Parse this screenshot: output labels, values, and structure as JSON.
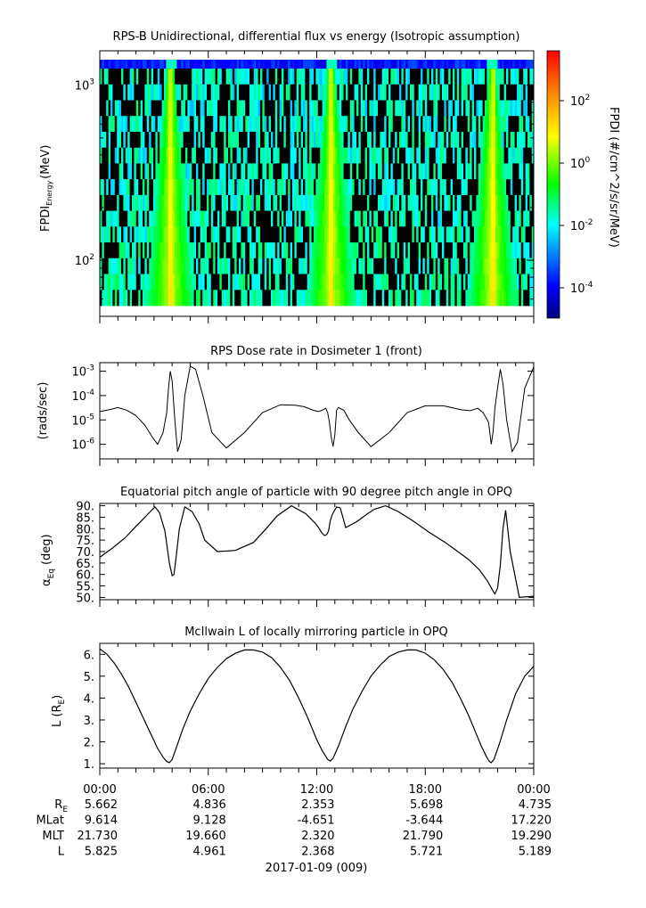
{
  "figure": {
    "date_label": "2017-01-09 (009)",
    "x_ticks": [
      "00:00",
      "06:00",
      "12:00",
      "18:00",
      "00:00"
    ],
    "ephemeris": [
      {
        "label": "R",
        "sub": "E",
        "values": [
          "5.662",
          "4.836",
          "2.353",
          "5.698",
          "4.735"
        ]
      },
      {
        "label": "MLat",
        "sub": "",
        "values": [
          "9.614",
          "9.128",
          "-4.651",
          "-3.644",
          "17.220"
        ]
      },
      {
        "label": "MLT",
        "sub": "",
        "values": [
          "21.730",
          "19.660",
          "2.320",
          "21.790",
          "19.290"
        ]
      },
      {
        "label": "L",
        "sub": "",
        "values": [
          "5.825",
          "4.961",
          "2.368",
          "5.721",
          "5.189"
        ]
      }
    ]
  },
  "chart_data": [
    {
      "type": "heatmap",
      "title": "RPS-B  Unidirectional, differential flux vs energy (Isotropic assumption)",
      "ylabel": "FPDI",
      "ylabel_sub": "Energy",
      "ylabel_unit": "(MeV)",
      "y_scale": "log",
      "y_ticks": [
        {
          "base": "10",
          "exp": "2",
          "value": 100
        },
        {
          "base": "10",
          "exp": "3",
          "value": 1000
        }
      ],
      "x_range_hours": [
        0,
        24
      ],
      "enhancement_centers_hours": [
        3.85,
        12.75,
        21.65
      ],
      "colorbar": {
        "label": "FPDI (#/cm^2/s/sr/MeV)",
        "scale": "log",
        "ticks": [
          {
            "base": "10",
            "exp": "2"
          },
          {
            "base": "10",
            "exp": "0"
          },
          {
            "base": "10",
            "exp": "-2"
          },
          {
            "base": "10",
            "exp": "-4"
          }
        ],
        "colors": [
          "#000080",
          "#0000ff",
          "#00ffff",
          "#00ff00",
          "#ffff00",
          "#ff8000",
          "#ff0000"
        ]
      }
    },
    {
      "type": "line",
      "title": "RPS  Dose rate in Dosimeter 1 (front)",
      "ylabel": "(rads/sec)",
      "y_scale": "log",
      "y_ticks": [
        {
          "base": "10",
          "exp": "-3"
        },
        {
          "base": "10",
          "exp": "-4"
        },
        {
          "base": "10",
          "exp": "-5"
        },
        {
          "base": "10",
          "exp": "-6"
        }
      ],
      "x": [
        0,
        0.5,
        1.0,
        1.5,
        2.0,
        2.5,
        2.9,
        3.2,
        3.5,
        3.7,
        3.8,
        3.9,
        4.0,
        4.15,
        4.3,
        4.5,
        4.7,
        5.0,
        5.3,
        5.7,
        6.2,
        7.0,
        8.0,
        9.0,
        10.0,
        10.8,
        11.3,
        11.8,
        12.1,
        12.3,
        12.5,
        12.6,
        12.7,
        12.8,
        12.9,
        13.0,
        13.1,
        13.2,
        13.5,
        13.8,
        14.3,
        15.0,
        16.0,
        17.0,
        18.0,
        19.0,
        20.0,
        20.5,
        20.9,
        21.2,
        21.5,
        21.65,
        21.75,
        21.85,
        22.0,
        22.15,
        22.3,
        22.5,
        22.8,
        23.1,
        23.5,
        24.0
      ],
      "y": [
        2.2e-05,
        2.6e-05,
        3.2e-05,
        2.5e-05,
        1.5e-05,
        6e-06,
        2e-06,
        1e-06,
        3e-06,
        2e-05,
        0.0002,
        0.001,
        0.0004,
        1e-05,
        5e-07,
        1.5e-06,
        0.0001,
        0.0016,
        0.0012,
        0.0001,
        3e-06,
        7e-07,
        3e-06,
        2e-05,
        4.2e-05,
        4e-05,
        3.5e-05,
        2.5e-05,
        2.2e-05,
        2.5e-05,
        3e-05,
        2e-05,
        8e-06,
        2e-06,
        8e-07,
        2.5e-06,
        2.5e-05,
        3.2e-05,
        2.5e-05,
        1e-05,
        3e-06,
        8e-07,
        3e-06,
        2e-05,
        3.8e-05,
        3.8e-05,
        2.6e-05,
        2.4e-05,
        3e-05,
        2e-05,
        8e-06,
        1e-06,
        3e-06,
        3e-05,
        0.0002,
        0.0012,
        0.0003,
        1e-05,
        5e-07,
        1.2e-06,
        0.0002,
        0.0015
      ]
    },
    {
      "type": "line",
      "title": "Equatorial pitch angle of particle with 90 degree pitch angle in OPQ",
      "ylabel": "α",
      "ylabel_sub": "Eq",
      "ylabel_unit": "(deg)",
      "y_ticks": [
        "90.",
        "85.",
        "80.",
        "75.",
        "70.",
        "65.",
        "60.",
        "55.",
        "50."
      ],
      "ylim": [
        49,
        91
      ],
      "x": [
        0,
        0.7,
        1.4,
        2.0,
        2.5,
        2.8,
        3.05,
        3.3,
        3.6,
        3.85,
        4.0,
        4.1,
        4.2,
        4.4,
        4.7,
        5.1,
        5.5,
        5.8,
        6.5,
        7.5,
        8.5,
        9.2,
        9.8,
        10.6,
        11.4,
        11.9,
        12.1,
        12.25,
        12.35,
        12.45,
        12.55,
        12.65,
        12.75,
        12.85,
        12.95,
        13.1,
        13.3,
        13.6,
        14.2,
        14.8,
        15.2,
        15.8,
        16.5,
        17.3,
        18.2,
        19.1,
        19.8,
        20.4,
        21.0,
        21.45,
        21.7,
        21.85,
        22.0,
        22.15,
        22.3,
        22.45,
        22.7,
        23.2,
        24.0
      ],
      "y": [
        67.5,
        71.5,
        76.0,
        81.0,
        85.0,
        87.5,
        89.5,
        87.0,
        79.0,
        65.0,
        59.5,
        60.0,
        66.0,
        80.0,
        89.5,
        87.5,
        82.0,
        75.0,
        70.0,
        70.5,
        74.0,
        80.0,
        85.5,
        90.0,
        86.5,
        82.5,
        80.5,
        78.5,
        77.5,
        77.0,
        77.5,
        79.0,
        83.5,
        86.0,
        87.5,
        89.5,
        89.0,
        80.5,
        83.0,
        86.5,
        88.5,
        90.0,
        87.5,
        83.5,
        78.5,
        74.0,
        70.0,
        66.5,
        62.0,
        57.0,
        53.5,
        51.5,
        54.0,
        64.0,
        80.0,
        88.0,
        70.0,
        50.0,
        50.5
      ]
    },
    {
      "type": "line",
      "title": "McIlwain L of locally mirroring particle in OPQ",
      "ylabel": "L (R",
      "ylabel_sub": "E",
      "ylabel_unit": ")",
      "y_ticks": [
        "6.",
        "5.",
        "4.",
        "3.",
        "2.",
        "1."
      ],
      "ylim": [
        0.8,
        6.5
      ],
      "x": [
        0,
        0.4,
        0.8,
        1.2,
        1.6,
        2.0,
        2.4,
        2.8,
        3.2,
        3.5,
        3.7,
        3.85,
        4.0,
        4.2,
        4.6,
        5.0,
        5.5,
        6.0,
        6.5,
        7.0,
        7.5,
        8.0,
        8.5,
        9.0,
        9.5,
        10.0,
        10.5,
        11.0,
        11.5,
        12.0,
        12.3,
        12.6,
        12.75,
        12.9,
        13.2,
        13.6,
        14.0,
        14.5,
        15.0,
        15.5,
        16.0,
        16.5,
        17.0,
        17.5,
        18.0,
        18.5,
        19.0,
        19.5,
        20.0,
        20.4,
        20.8,
        21.1,
        21.4,
        21.55,
        21.65,
        21.8,
        22.1,
        22.5,
        23.0,
        23.5,
        24.0
      ],
      "y": [
        6.25,
        6.0,
        5.6,
        5.1,
        4.5,
        3.8,
        3.1,
        2.4,
        1.7,
        1.3,
        1.1,
        1.05,
        1.2,
        1.65,
        2.6,
        3.4,
        4.2,
        4.9,
        5.4,
        5.8,
        6.05,
        6.2,
        6.2,
        6.1,
        5.85,
        5.4,
        4.8,
        4.0,
        3.1,
        2.1,
        1.6,
        1.2,
        1.12,
        1.25,
        1.8,
        2.7,
        3.5,
        4.3,
        5.0,
        5.5,
        5.9,
        6.1,
        6.2,
        6.2,
        6.05,
        5.75,
        5.3,
        4.7,
        3.9,
        3.2,
        2.4,
        1.8,
        1.3,
        1.1,
        1.05,
        1.2,
        1.9,
        3.0,
        4.2,
        5.0,
        5.45
      ]
    }
  ]
}
